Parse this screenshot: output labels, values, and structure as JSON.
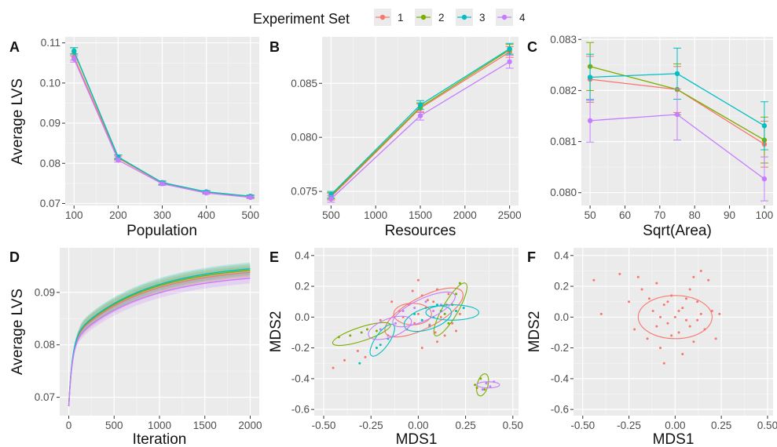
{
  "legend": {
    "title": "Experiment Set",
    "items": [
      {
        "label": "1",
        "color": "#F8766D"
      },
      {
        "label": "2",
        "color": "#7CAE00"
      },
      {
        "label": "3",
        "color": "#00BFC4"
      },
      {
        "label": "4",
        "color": "#C77CFF"
      }
    ]
  },
  "chart_data": [
    {
      "id": "A",
      "type": "line",
      "xlabel": "Population",
      "ylabel": "Average LVS",
      "xlim": [
        80,
        520
      ],
      "ylim": [
        0.0695,
        0.1115
      ],
      "xticks": [
        100,
        200,
        300,
        400,
        500
      ],
      "xtick_labels": [
        "100",
        "200",
        "300",
        "400",
        "500"
      ],
      "yticks": [
        0.07,
        0.08,
        0.09,
        0.1,
        0.11
      ],
      "ytick_labels": [
        "0.07",
        "0.08",
        "0.09",
        "0.10",
        "0.11"
      ],
      "x": [
        100,
        200,
        300,
        400,
        500
      ],
      "series": [
        {
          "name": "1",
          "values": [
            0.1065,
            0.0813,
            0.0751,
            0.0728,
            0.0717
          ],
          "err": [
            0.0008,
            0.0005,
            0.0004,
            0.0003,
            0.0003
          ]
        },
        {
          "name": "2",
          "values": [
            0.1078,
            0.0815,
            0.0752,
            0.0729,
            0.0718
          ],
          "err": [
            0.001,
            0.0006,
            0.0004,
            0.0003,
            0.0003
          ]
        },
        {
          "name": "3",
          "values": [
            0.108,
            0.0816,
            0.0752,
            0.0729,
            0.0718
          ],
          "err": [
            0.0008,
            0.0005,
            0.0004,
            0.0003,
            0.0003
          ]
        },
        {
          "name": "4",
          "values": [
            0.106,
            0.0808,
            0.0749,
            0.0726,
            0.0715
          ],
          "err": [
            0.0008,
            0.0005,
            0.0004,
            0.0003,
            0.0003
          ]
        }
      ]
    },
    {
      "id": "B",
      "type": "line",
      "xlabel": "Resources",
      "ylabel": "",
      "xlim": [
        400,
        2600
      ],
      "ylim": [
        0.0737,
        0.0893
      ],
      "xticks": [
        500,
        1000,
        1500,
        2000,
        2500
      ],
      "xtick_labels": [
        "500",
        "1000",
        "1500",
        "2000",
        "2500"
      ],
      "yticks": [
        0.075,
        0.08,
        0.085
      ],
      "ytick_labels": [
        "0.075",
        "0.080",
        "0.085"
      ],
      "x": [
        500,
        1500,
        2500
      ],
      "series": [
        {
          "name": "1",
          "values": [
            0.0745,
            0.0827,
            0.0879
          ],
          "err": [
            0.0003,
            0.0004,
            0.0005
          ]
        },
        {
          "name": "2",
          "values": [
            0.0746,
            0.0828,
            0.0881
          ],
          "err": [
            0.0003,
            0.0004,
            0.0005
          ]
        },
        {
          "name": "3",
          "values": [
            0.0747,
            0.083,
            0.0882
          ],
          "err": [
            0.0003,
            0.0004,
            0.0005
          ]
        },
        {
          "name": "4",
          "values": [
            0.0743,
            0.082,
            0.087
          ],
          "err": [
            0.0003,
            0.0004,
            0.0006
          ]
        }
      ]
    },
    {
      "id": "C",
      "type": "line",
      "xlabel": "Sqrt(Area)",
      "ylabel": "",
      "xlim": [
        47.5,
        102.5
      ],
      "ylim": [
        0.07975,
        0.08305
      ],
      "xticks": [
        50,
        60,
        70,
        80,
        90,
        100
      ],
      "xtick_labels": [
        "50",
        "60",
        "70",
        "80",
        "90",
        "100"
      ],
      "yticks": [
        0.08,
        0.081,
        0.082,
        0.083
      ],
      "ytick_labels": [
        "0.080",
        "0.081",
        "0.082",
        "0.083"
      ],
      "x": [
        50,
        75,
        100
      ],
      "series": [
        {
          "name": "1",
          "values": [
            0.08222,
            0.08202,
            0.08095
          ],
          "err": [
            0.00045,
            0.00045,
            0.00045
          ]
        },
        {
          "name": "2",
          "values": [
            0.08247,
            0.08202,
            0.08103
          ],
          "err": [
            0.00047,
            0.0005,
            0.00045
          ]
        },
        {
          "name": "3",
          "values": [
            0.08226,
            0.08233,
            0.08131
          ],
          "err": [
            0.00045,
            0.0005,
            0.00047
          ]
        },
        {
          "name": "4",
          "values": [
            0.08141,
            0.08153,
            0.08027
          ],
          "err": [
            0.00042,
            0.0005,
            0.00043
          ]
        }
      ]
    },
    {
      "id": "D",
      "type": "line",
      "xlabel": "Iteration",
      "ylabel": "Average LVS",
      "xlim": [
        -100,
        2100
      ],
      "ylim": [
        0.0665,
        0.0985
      ],
      "xticks": [
        0,
        500,
        1000,
        1500,
        2000
      ],
      "xtick_labels": [
        "0",
        "500",
        "1000",
        "1500",
        "2000"
      ],
      "yticks": [
        0.07,
        0.08,
        0.09
      ],
      "ytick_labels": [
        "0.07",
        "0.08",
        "0.09"
      ],
      "model": "y = y0 + a*(1-exp(-x/t1)) + b*(1-exp(-x/t2))",
      "series": [
        {
          "name": "1",
          "y0": 0.0683,
          "a": 0.0125,
          "t1": 40,
          "b": 0.0142,
          "t2": 800,
          "band": 0.0012
        },
        {
          "name": "2",
          "y0": 0.0683,
          "a": 0.0127,
          "t1": 40,
          "b": 0.0144,
          "t2": 800,
          "band": 0.0012
        },
        {
          "name": "3",
          "y0": 0.0683,
          "a": 0.0128,
          "t1": 40,
          "b": 0.0146,
          "t2": 800,
          "band": 0.0012
        },
        {
          "name": "4",
          "y0": 0.0683,
          "a": 0.012,
          "t1": 40,
          "b": 0.0135,
          "t2": 800,
          "band": 0.001
        }
      ]
    },
    {
      "id": "E",
      "type": "scatter",
      "xlabel": "MDS1",
      "ylabel": "MDS2",
      "xlim": [
        -0.55,
        0.53
      ],
      "ylim": [
        -0.64,
        0.45
      ],
      "xticks": [
        -0.5,
        -0.25,
        0,
        0.25,
        0.5
      ],
      "xtick_labels": [
        "-0.50",
        "-0.25",
        "0.00",
        "0.25",
        "0.50"
      ],
      "yticks": [
        -0.6,
        -0.4,
        -0.2,
        0,
        0.2,
        0.4
      ],
      "ytick_labels": [
        "-0.6",
        "-0.4",
        "-0.2",
        "0.0",
        "0.2",
        "0.4"
      ],
      "ellipses": [
        {
          "set": "1",
          "cx": 0.03,
          "cy": 0.03,
          "rx": 0.23,
          "ry": 0.1,
          "angle": 28
        },
        {
          "set": "1",
          "cx": -0.03,
          "cy": 0.02,
          "rx": 0.1,
          "ry": 0.07,
          "angle": 0
        },
        {
          "set": "2",
          "cx": -0.3,
          "cy": -0.11,
          "rx": 0.16,
          "ry": 0.045,
          "angle": 18
        },
        {
          "set": "2",
          "cx": 0.17,
          "cy": 0.05,
          "rx": 0.16,
          "ry": 0.05,
          "angle": 60
        },
        {
          "set": "2",
          "cx": 0.34,
          "cy": -0.44,
          "rx": 0.06,
          "ry": 0.035,
          "angle": 75
        },
        {
          "set": "3",
          "cx": -0.19,
          "cy": -0.15,
          "rx": 0.1,
          "ry": 0.045,
          "angle": 55
        },
        {
          "set": "3",
          "cx": 0.05,
          "cy": -0.01,
          "rx": 0.13,
          "ry": 0.07,
          "angle": 18
        },
        {
          "set": "3",
          "cx": 0.18,
          "cy": 0.03,
          "rx": 0.14,
          "ry": 0.05,
          "angle": 0
        },
        {
          "set": "4",
          "cx": -0.15,
          "cy": -0.07,
          "rx": 0.12,
          "ry": 0.06,
          "angle": 20
        },
        {
          "set": "4",
          "cx": 0.03,
          "cy": 0.05,
          "rx": 0.18,
          "ry": 0.07,
          "angle": 25
        },
        {
          "set": "4",
          "cx": 0.37,
          "cy": -0.44,
          "rx": 0.06,
          "ry": 0.02,
          "angle": 0
        }
      ],
      "points": [
        {
          "set": "1",
          "xy": [
            [
              -0.45,
              -0.33
            ],
            [
              -0.39,
              -0.28
            ],
            [
              -0.32,
              -0.22
            ],
            [
              -0.28,
              -0.26
            ],
            [
              0.02,
              -0.2
            ],
            [
              0.1,
              -0.16
            ],
            [
              0.14,
              -0.12
            ],
            [
              0.2,
              -0.09
            ],
            [
              -0.05,
              0.08
            ],
            [
              0.0,
              0.02
            ],
            [
              0.04,
              0.06
            ],
            [
              0.08,
              0.1
            ],
            [
              -0.1,
              0.04
            ],
            [
              0.12,
              0.0
            ],
            [
              0.06,
              -0.05
            ],
            [
              -0.02,
              -0.04
            ],
            [
              0.15,
              0.08
            ],
            [
              -0.06,
              -0.08
            ],
            [
              0.02,
              0.14
            ],
            [
              0.1,
              0.18
            ],
            [
              -0.14,
              0.1
            ],
            [
              0.18,
              -0.04
            ],
            [
              0.05,
              0.11
            ],
            [
              -0.08,
              0.0
            ],
            [
              0.09,
              -0.1
            ],
            [
              0.0,
              0.24
            ],
            [
              0.16,
              0.15
            ],
            [
              -0.2,
              -0.02
            ],
            [
              0.22,
              0.02
            ],
            [
              -0.03,
              0.17
            ]
          ]
        },
        {
          "set": "2",
          "xy": [
            [
              -0.42,
              -0.13
            ],
            [
              -0.36,
              -0.12
            ],
            [
              -0.3,
              -0.1
            ],
            [
              -0.27,
              -0.08
            ],
            [
              -0.22,
              -0.09
            ],
            [
              0.14,
              0.02
            ],
            [
              0.18,
              0.08
            ],
            [
              0.2,
              0.15
            ],
            [
              0.22,
              0.22
            ],
            [
              0.16,
              -0.04
            ],
            [
              0.3,
              -0.44
            ],
            [
              0.33,
              -0.4
            ],
            [
              0.35,
              -0.47
            ],
            [
              0.31,
              -0.46
            ],
            [
              0.36,
              -0.43
            ]
          ]
        },
        {
          "set": "3",
          "xy": [
            [
              -0.31,
              -0.3
            ],
            [
              -0.2,
              -0.18
            ],
            [
              -0.16,
              -0.14
            ],
            [
              -0.22,
              -0.2
            ],
            [
              0.02,
              -0.02
            ],
            [
              0.08,
              0.0
            ],
            [
              0.12,
              0.04
            ],
            [
              0.2,
              0.04
            ],
            [
              0.24,
              0.06
            ],
            [
              0.06,
              -0.06
            ],
            [
              -0.02,
              0.02
            ],
            [
              0.1,
              0.08
            ]
          ]
        },
        {
          "set": "4",
          "xy": [
            [
              -0.2,
              -0.08
            ],
            [
              -0.16,
              -0.12
            ],
            [
              -0.12,
              -0.04
            ],
            [
              -0.08,
              0.04
            ],
            [
              -0.02,
              0.06
            ],
            [
              0.04,
              0.1
            ],
            [
              0.08,
              0.04
            ],
            [
              0.12,
              0.08
            ],
            [
              0.36,
              -0.43
            ],
            [
              0.38,
              -0.45
            ],
            [
              0.34,
              -0.47
            ],
            [
              0.4,
              -0.42
            ]
          ]
        }
      ]
    },
    {
      "id": "F",
      "type": "scatter",
      "xlabel": "MDS1",
      "ylabel": "MDS2",
      "xlim": [
        -0.55,
        0.53
      ],
      "ylim": [
        -0.64,
        0.45
      ],
      "xticks": [
        -0.5,
        -0.25,
        0,
        0.25,
        0.5
      ],
      "xtick_labels": [
        "-0.50",
        "-0.25",
        "0.00",
        "0.25",
        "0.50"
      ],
      "yticks": [
        -0.6,
        -0.4,
        -0.2,
        0,
        0.2,
        0.4
      ],
      "ytick_labels": [
        "-0.6",
        "-0.4",
        "-0.2",
        "0.0",
        "0.2",
        "0.4"
      ],
      "ellipses": [
        {
          "set": "1",
          "cx": 0.0,
          "cy": 0.0,
          "rx": 0.2,
          "ry": 0.14,
          "angle": 0
        }
      ],
      "points": [
        {
          "set": "1",
          "xy": [
            [
              -0.44,
              0.24
            ],
            [
              -0.4,
              0.02
            ],
            [
              -0.3,
              0.28
            ],
            [
              -0.25,
              0.1
            ],
            [
              -0.22,
              -0.08
            ],
            [
              -0.18,
              0.18
            ],
            [
              -0.15,
              -0.14
            ],
            [
              -0.12,
              0.04
            ],
            [
              -0.1,
              0.22
            ],
            [
              -0.08,
              -0.2
            ],
            [
              -0.06,
              0.08
            ],
            [
              -0.04,
              -0.04
            ],
            [
              -0.02,
              0.14
            ],
            [
              0.0,
              0.0
            ],
            [
              0.02,
              -0.1
            ],
            [
              0.04,
              0.06
            ],
            [
              0.06,
              -0.02
            ],
            [
              0.08,
              0.18
            ],
            [
              0.1,
              -0.16
            ],
            [
              0.12,
              0.1
            ],
            [
              0.14,
              0.02
            ],
            [
              0.16,
              -0.08
            ],
            [
              0.18,
              0.24
            ],
            [
              0.2,
              0.04
            ],
            [
              0.22,
              -0.14
            ],
            [
              0.24,
              0.02
            ],
            [
              0.14,
              0.3
            ],
            [
              0.04,
              -0.24
            ],
            [
              -0.06,
              -0.3
            ],
            [
              -0.2,
              0.26
            ],
            [
              0.1,
              0.26
            ],
            [
              -0.14,
              0.12
            ],
            [
              0.02,
              0.04
            ],
            [
              -0.04,
              0.1
            ],
            [
              0.06,
              0.12
            ],
            [
              -0.1,
              -0.06
            ],
            [
              0.08,
              -0.06
            ],
            [
              -0.02,
              -0.12
            ],
            [
              0.12,
              -0.02
            ],
            [
              -0.08,
              0.0
            ]
          ]
        }
      ]
    }
  ]
}
